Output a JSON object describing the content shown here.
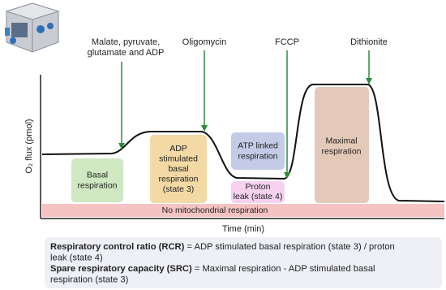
{
  "y_axis_label": "O₂ flux (pmol)",
  "x_axis_label": "Time (min)",
  "injections": [
    {
      "lines": [
        "Malate, pyruvate,",
        "glutamate and ADP"
      ]
    },
    {
      "lines": [
        "Oligomycin"
      ]
    },
    {
      "lines": [
        "FCCP"
      ]
    },
    {
      "lines": [
        "Dithionite"
      ]
    }
  ],
  "regions": [
    {
      "lines": [
        "Basal",
        "respiration"
      ]
    },
    {
      "lines": [
        "ADP",
        "stimulated",
        "basal",
        "respiration",
        "(state 3)"
      ]
    },
    {
      "lines": [
        "ATP linked",
        "respiration"
      ]
    },
    {
      "lines": [
        "Proton",
        "leak (state 4)"
      ]
    },
    {
      "lines": [
        "Maximal",
        "respiration"
      ]
    },
    {
      "lines": [
        "No mitochondrial respiration"
      ]
    }
  ],
  "definitions": [
    {
      "term": "Respiratory control ratio (RCR)",
      "lines": [
        " = ADP stimulated basal respiration (state 3) / proton",
        "leak (state 4)"
      ]
    },
    {
      "term": "Spare respiratory capacity (SRC)",
      "lines": [
        " = Maximal respiration - ADP stimulated basal",
        "respiration (state 3)"
      ]
    }
  ]
}
